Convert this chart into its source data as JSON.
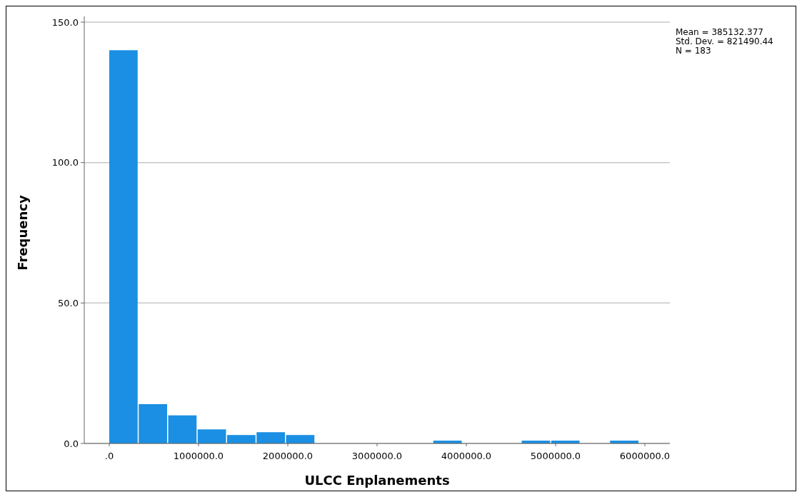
{
  "chart_data": {
    "type": "histogram",
    "xlabel": "ULCC Enplanements",
    "ylabel": "Frequency",
    "bins": [
      0,
      330000,
      660000,
      990000,
      1320000,
      1650000,
      1980000,
      2310000,
      2640000,
      2970000,
      3300000,
      3630000,
      3960000,
      4290000,
      4620000,
      4950000,
      5280000,
      5610000,
      5940000
    ],
    "values": [
      140,
      14,
      10,
      5,
      3,
      4,
      3,
      0,
      0,
      0,
      0,
      1,
      0,
      0,
      1,
      1,
      0,
      1
    ],
    "color": "#1a8fe3",
    "xlim": [
      -280000,
      6280000
    ],
    "xticks": [
      {
        "value": 0,
        "label": ".0"
      },
      {
        "value": 1000000,
        "label": "1000000.0"
      },
      {
        "value": 2000000,
        "label": "2000000.0"
      },
      {
        "value": 3000000,
        "label": "3000000.0"
      },
      {
        "value": 4000000,
        "label": "4000000.0"
      },
      {
        "value": 5000000,
        "label": "5000000.0"
      },
      {
        "value": 6000000,
        "label": "6000000.0"
      }
    ],
    "ylim": [
      0,
      150
    ],
    "yticks": [
      {
        "value": 0,
        "label": "0.0"
      },
      {
        "value": 50,
        "label": "50.0"
      },
      {
        "value": 100,
        "label": "100.0"
      },
      {
        "value": 150,
        "label": "150.0"
      }
    ],
    "grid": "y",
    "annotations": [
      "Mean = 385132.377",
      "Std. Dev. = 821490.44",
      "N = 183"
    ]
  }
}
